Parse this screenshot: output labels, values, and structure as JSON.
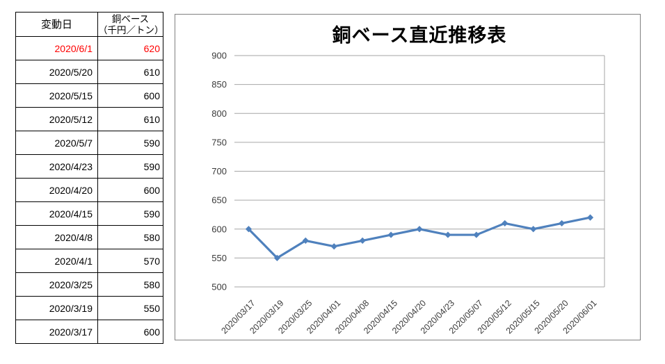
{
  "colors": {
    "line": "#4F81BD",
    "highlight_red": "#FF0000",
    "gridline": "#A6A6A6",
    "plot_right_border": "#A6A6A6",
    "chart_border": "#808080",
    "table_border": "#000000",
    "axis_text": "#3A3A3A",
    "title_text": "#000000"
  },
  "table": {
    "header_date": "変動日",
    "header_price_line1": "銅ベース",
    "header_price_line2": "（千円／トン）",
    "rows": [
      {
        "date": "2020/6/1",
        "value": "620",
        "highlight": true
      },
      {
        "date": "2020/5/20",
        "value": "610",
        "highlight": false
      },
      {
        "date": "2020/5/15",
        "value": "600",
        "highlight": false
      },
      {
        "date": "2020/5/12",
        "value": "610",
        "highlight": false
      },
      {
        "date": "2020/5/7",
        "value": "590",
        "highlight": false
      },
      {
        "date": "2020/4/23",
        "value": "590",
        "highlight": false
      },
      {
        "date": "2020/4/20",
        "value": "600",
        "highlight": false
      },
      {
        "date": "2020/4/15",
        "value": "590",
        "highlight": false
      },
      {
        "date": "2020/4/8",
        "value": "580",
        "highlight": false
      },
      {
        "date": "2020/4/1",
        "value": "570",
        "highlight": false
      },
      {
        "date": "2020/3/25",
        "value": "580",
        "highlight": false
      },
      {
        "date": "2020/3/19",
        "value": "550",
        "highlight": false
      },
      {
        "date": "2020/3/17",
        "value": "600",
        "highlight": false
      }
    ]
  },
  "chart_data": {
    "type": "line",
    "title": "銅ベース直近推移表",
    "categories": [
      "2020/03/17",
      "2020/03/19",
      "2020/03/25",
      "2020/04/01",
      "2020/04/08",
      "2020/04/15",
      "2020/04/20",
      "2020/04/23",
      "2020/05/07",
      "2020/05/12",
      "2020/05/15",
      "2020/05/20",
      "2020/06/01"
    ],
    "values": [
      600,
      550,
      580,
      570,
      580,
      590,
      600,
      590,
      590,
      610,
      600,
      610,
      620
    ],
    "ylim": [
      500,
      900
    ],
    "ytick_step": 50,
    "xlabel": "",
    "ylabel": "",
    "grid": true,
    "legend": false,
    "marker": "diamond"
  }
}
